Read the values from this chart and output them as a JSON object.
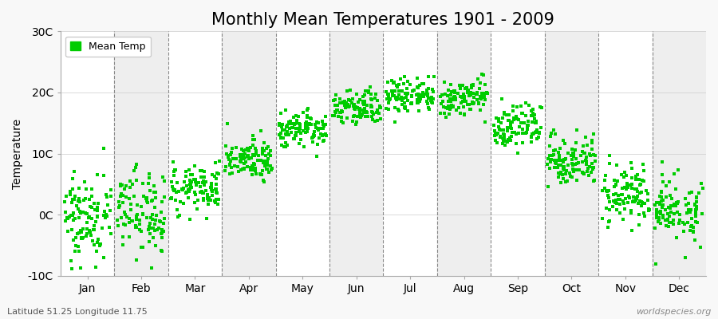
{
  "title": "Monthly Mean Temperatures 1901 - 2009",
  "ylabel": "Temperature",
  "footer_left": "Latitude 51.25 Longitude 11.75",
  "footer_right": "worldspecies.org",
  "legend_label": "Mean Temp",
  "marker_color": "#00cc00",
  "marker_size": 3,
  "ylim": [
    -10,
    30
  ],
  "yticks": [
    -10,
    0,
    10,
    20,
    30
  ],
  "ytick_labels": [
    "-10C",
    "0C",
    "10C",
    "20C",
    "30C"
  ],
  "months": [
    "Jan",
    "Feb",
    "Mar",
    "Apr",
    "May",
    "Jun",
    "Jul",
    "Aug",
    "Sep",
    "Oct",
    "Nov",
    "Dec"
  ],
  "num_years": 109,
  "mean_monthly": [
    -0.5,
    0.5,
    4.5,
    9.0,
    14.0,
    17.5,
    19.5,
    19.0,
    14.5,
    9.0,
    3.5,
    0.5
  ],
  "std_monthly": [
    3.5,
    3.5,
    2.0,
    1.5,
    1.5,
    1.5,
    1.5,
    1.5,
    2.0,
    2.0,
    2.5,
    2.5
  ],
  "bg_color_even": "#ffffff",
  "bg_color_odd": "#eeeeee",
  "title_fontsize": 15,
  "axis_label_fontsize": 10,
  "tick_label_fontsize": 10,
  "plot_bg": "#f8f8f8"
}
